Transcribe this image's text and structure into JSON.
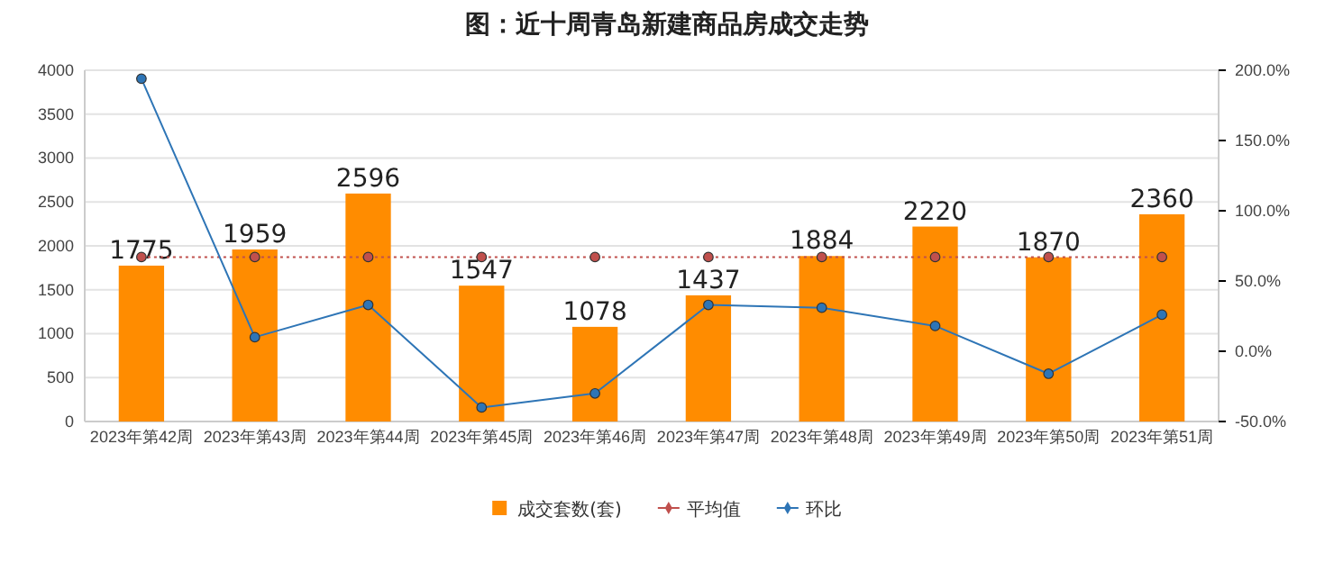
{
  "chart_data": {
    "type": "bar",
    "title": "图：近十周青岛新建商品房成交走势",
    "categories": [
      "2023年第42周",
      "2023年第43周",
      "2023年第44周",
      "2023年第45周",
      "2023年第46周",
      "2023年第47周",
      "2023年第48周",
      "2023年第49周",
      "2023年第50周",
      "2023年第51周"
    ],
    "series": [
      {
        "name": "成交套数(套)",
        "color": "#ff8c00",
        "values": [
          1775,
          1959,
          2596,
          1547,
          1078,
          1437,
          1884,
          2220,
          1870,
          2360
        ],
        "value_labels": [
          "1775",
          "1959",
          "2596",
          "1547",
          "1078",
          "1437",
          "1884",
          "2220",
          "1870",
          "2360"
        ]
      },
      {
        "name": "平均值",
        "type": "line",
        "color": "#c0504d",
        "line_style": "dotted",
        "marker": "circle",
        "values": [
          1873,
          1873,
          1873,
          1873,
          1873,
          1873,
          1873,
          1873,
          1873,
          1873
        ]
      },
      {
        "name": "环比",
        "type": "line",
        "color": "#2e75b6",
        "line_style": "solid",
        "marker": "circle",
        "axis": "y2",
        "values": [
          194,
          10,
          33,
          -40,
          -30,
          33,
          31,
          18,
          -16,
          26
        ]
      }
    ],
    "ylim": [
      0,
      4000
    ],
    "yticks": [
      0,
      500,
      1000,
      1500,
      2000,
      2500,
      3000,
      3500,
      4000
    ],
    "y2lim": [
      -50,
      200
    ],
    "y2ticks": [
      {
        "value": -50,
        "label": "-50.0%"
      },
      {
        "value": 0,
        "label": "0.0%"
      },
      {
        "value": 50,
        "label": "50.0%"
      },
      {
        "value": 100,
        "label": "100.0%"
      },
      {
        "value": 150,
        "label": "150.0%"
      },
      {
        "value": 200,
        "label": "200.0%"
      }
    ],
    "grid": "y",
    "legend": "bottom"
  }
}
